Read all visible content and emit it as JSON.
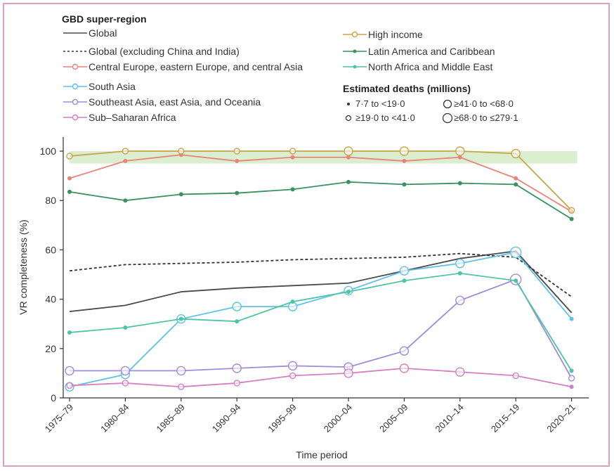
{
  "chart_data": {
    "type": "line",
    "legend_title": "GBD super-region",
    "xlabel": "Time period",
    "ylabel": "VR completeness (%)",
    "ylim": [
      0,
      100
    ],
    "yticks": [
      0,
      20,
      40,
      60,
      80,
      100
    ],
    "categories": [
      "1975–79",
      "1980–84",
      "1985–89",
      "1990–94",
      "1995–99",
      "2000–04",
      "2005–09",
      "2010–14",
      "2015–19",
      "2020–21"
    ],
    "series": [
      {
        "name": "Global",
        "color": "#4a4a4a",
        "style": "solid",
        "markers": false,
        "values": [
          35,
          37.5,
          43,
          44.5,
          45.5,
          46.5,
          51.5,
          56.5,
          59.5,
          34.5
        ]
      },
      {
        "name": "Global (excluding China and India)",
        "color": "#333333",
        "style": "dashed",
        "markers": false,
        "values": [
          51.5,
          54,
          54.5,
          55,
          56,
          56.5,
          57,
          58.5,
          57,
          41
        ]
      },
      {
        "name": "Central Europe, eastern Europe, and central Asia",
        "color": "#e8847a",
        "style": "solid",
        "markers": true,
        "values": [
          89,
          96,
          98.5,
          96,
          97.5,
          97.5,
          96,
          97.5,
          89,
          75.5
        ],
        "sizes": [
          1,
          1,
          1,
          1,
          1,
          1,
          1,
          1,
          1,
          1
        ]
      },
      {
        "name": "South Asia",
        "color": "#5ec1e8",
        "style": "solid",
        "markers": true,
        "values": [
          4.5,
          9.5,
          32,
          37,
          37,
          43.5,
          51.5,
          54.5,
          59,
          32
        ],
        "sizes": [
          3,
          3,
          3,
          3,
          3,
          3,
          3,
          3,
          4,
          1
        ]
      },
      {
        "name": "Southeast Asia, east Asia, and Oceania",
        "color": "#a08cd6",
        "style": "solid",
        "markers": true,
        "values": [
          11,
          11,
          11,
          12,
          13,
          12.5,
          19,
          39.5,
          48,
          8
        ],
        "sizes": [
          3,
          3,
          3,
          3,
          3,
          3,
          3,
          3,
          4,
          2
        ]
      },
      {
        "name": "Sub–Saharan Africa",
        "color": "#d47fc1",
        "style": "solid",
        "markers": true,
        "values": [
          5,
          6,
          4.5,
          6,
          9,
          10,
          12,
          10.5,
          9,
          4.5
        ],
        "sizes": [
          2,
          2,
          2,
          2,
          2,
          3,
          3,
          3,
          2,
          1
        ]
      },
      {
        "name": "High income",
        "color": "#c9a54a",
        "style": "solid",
        "markers": true,
        "values": [
          98,
          100,
          100,
          100,
          100,
          100,
          100,
          100,
          99,
          76
        ],
        "sizes": [
          2,
          2,
          2,
          2,
          2,
          3,
          3,
          3,
          3,
          2
        ]
      },
      {
        "name": "Latin America and Caribbean",
        "color": "#3a9160",
        "style": "solid",
        "markers": true,
        "values": [
          83.5,
          80,
          82.5,
          83,
          84.5,
          87.5,
          86.5,
          87,
          86.5,
          72.5
        ],
        "sizes": [
          1,
          1,
          1,
          1,
          1,
          1,
          1,
          1,
          1,
          1
        ]
      },
      {
        "name": "North Africa and Middle East",
        "color": "#4fc4a4",
        "style": "solid",
        "markers": true,
        "values": [
          26.5,
          28.5,
          32,
          31,
          39,
          43,
          47.5,
          50.5,
          47.5,
          11
        ],
        "sizes": [
          1,
          1,
          1,
          1,
          1,
          1,
          1,
          1,
          1,
          1
        ]
      }
    ],
    "band": {
      "from": 95,
      "to": 100,
      "color": "#d5ebc7"
    },
    "size_legend": {
      "title": "Estimated deaths (millions)",
      "items": [
        {
          "label": "7·7 to <19·0",
          "size": 1
        },
        {
          "label": "≥41·0 to <68·0",
          "size": 3
        },
        {
          "label": "≥19·0 to <41·0",
          "size": 2
        },
        {
          "label": "≥68·0 to  ≤279·1",
          "size": 4
        }
      ]
    }
  }
}
